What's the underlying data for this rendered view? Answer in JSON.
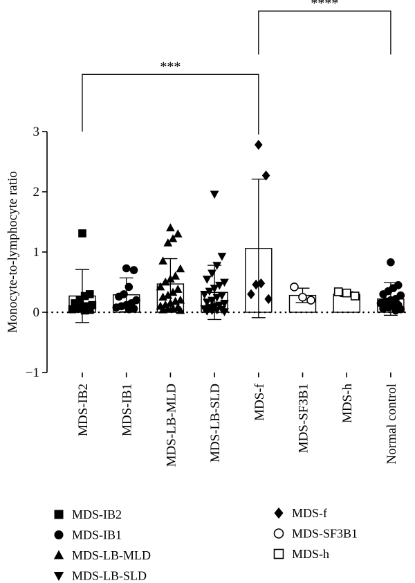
{
  "chart_data": {
    "type": "bar",
    "ylabel": "Monocyte-to-lymphocyte ratio",
    "ylim": [
      -1,
      3
    ],
    "yticks": [
      -1,
      0,
      1,
      2,
      3
    ],
    "reference_line": 0,
    "categories": [
      "MDS-IB2",
      "MDS-IB1",
      "MDS-LB-MLD",
      "MDS-LB-SLD",
      "MDS-f",
      "MDS-SF3B1",
      "MDS-h",
      "Normal control"
    ],
    "groups": [
      {
        "category": "MDS-IB2",
        "marker": "square-filled",
        "mean": 0.27,
        "sd": 0.44,
        "points": [
          1.31,
          0.3,
          0.27,
          0.2,
          0.15,
          0.12,
          0.1,
          0.08,
          0.06,
          0.05,
          0.04,
          0.03
        ]
      },
      {
        "category": "MDS-IB1",
        "marker": "circle-filled",
        "mean": 0.29,
        "sd": 0.28,
        "points": [
          0.73,
          0.7,
          0.42,
          0.3,
          0.26,
          0.2,
          0.15,
          0.12,
          0.1,
          0.08,
          0.06,
          0.05
        ]
      },
      {
        "category": "MDS-LB-MLD",
        "marker": "triangle-up-filled",
        "mean": 0.47,
        "sd": 0.42,
        "points": [
          1.4,
          1.3,
          1.22,
          1.15,
          0.85,
          0.72,
          0.6,
          0.55,
          0.5,
          0.42,
          0.38,
          0.33,
          0.28,
          0.25,
          0.2,
          0.18,
          0.15,
          0.12,
          0.1,
          0.08,
          0.06,
          0.05,
          0.04,
          0.03
        ]
      },
      {
        "category": "MDS-LB-SLD",
        "marker": "triangle-down-filled",
        "mean": 0.33,
        "sd": 0.45,
        "points": [
          1.96,
          0.93,
          0.78,
          0.65,
          0.55,
          0.5,
          0.45,
          0.4,
          0.35,
          0.3,
          0.28,
          0.25,
          0.2,
          0.17,
          0.15,
          0.12,
          0.1,
          0.08,
          0.06,
          0.05,
          0.04,
          0.03,
          0.02,
          0.01
        ]
      },
      {
        "category": "MDS-f",
        "marker": "diamond-filled",
        "mean": 1.06,
        "sd": 1.15,
        "points": [
          2.78,
          2.27,
          0.48,
          0.46,
          0.3,
          0.22
        ]
      },
      {
        "category": "MDS-SF3B1",
        "marker": "circle-open",
        "mean": 0.28,
        "sd": 0.12,
        "points": [
          0.42,
          0.25,
          0.2
        ]
      },
      {
        "category": "MDS-h",
        "marker": "square-open",
        "mean": 0.3,
        "sd": 0.04,
        "points": [
          0.34,
          0.32,
          0.27
        ]
      },
      {
        "category": "Normal control",
        "marker": "circle-filled",
        "mean": 0.22,
        "sd": 0.27,
        "points": [
          0.83,
          0.45,
          0.4,
          0.35,
          0.3,
          0.28,
          0.22,
          0.2,
          0.18,
          0.15,
          0.12,
          0.1,
          0.08,
          0.06,
          0.05,
          0.03
        ]
      }
    ],
    "significance": [
      {
        "from": "MDS-IB2",
        "to": "MDS-f",
        "label": "***",
        "y": 3.95
      },
      {
        "from": "MDS-f",
        "to": "Normal control",
        "label": "****",
        "y": 5.0
      }
    ],
    "legend": {
      "placement": "bottom",
      "entries": [
        {
          "label": "MDS-IB2",
          "marker": "square-filled"
        },
        {
          "label": "MDS-IB1",
          "marker": "circle-filled"
        },
        {
          "label": "MDS-LB-MLD",
          "marker": "triangle-up-filled"
        },
        {
          "label": "MDS-LB-SLD",
          "marker": "triangle-down-filled"
        },
        {
          "label": "MDS-f",
          "marker": "diamond-filled"
        },
        {
          "label": "MDS-SF3B1",
          "marker": "circle-open"
        },
        {
          "label": "MDS-h",
          "marker": "square-open"
        }
      ]
    },
    "colors": {
      "ink": "#000000",
      "bar_fill": "#ffffff"
    }
  }
}
